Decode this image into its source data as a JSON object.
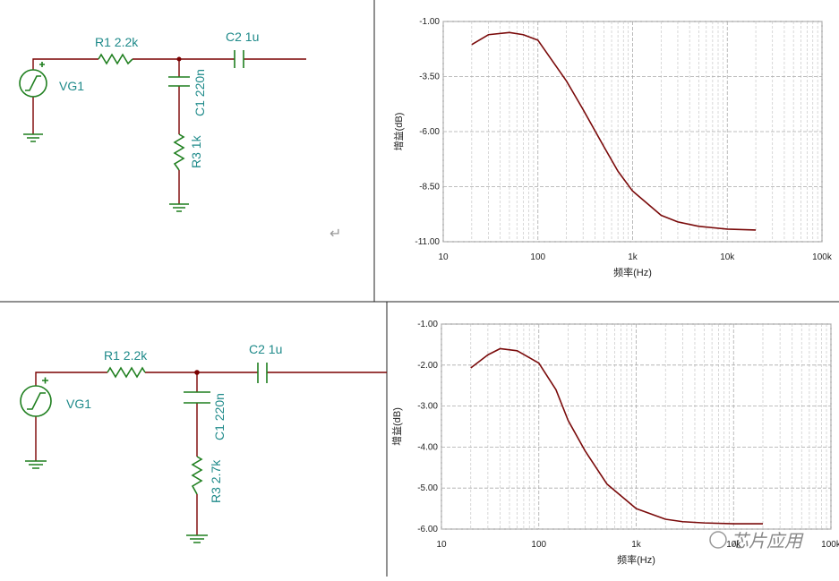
{
  "chart_data": [
    {
      "type": "line",
      "logx": true,
      "grid": true,
      "xlabel": "频率(Hz)",
      "ylabel": "增益(dB)",
      "xlim": [
        10,
        100000
      ],
      "xticks": [
        10,
        100,
        {
          "value": 1000,
          "label": "1k"
        },
        {
          "value": 10000,
          "label": "10k"
        },
        {
          "value": 100000,
          "label": "100k"
        }
      ],
      "ylim": [
        -11,
        -1
      ],
      "yticks": [
        {
          "value": -1,
          "label": "-1.00"
        },
        {
          "value": -3.5,
          "label": "-3.50"
        },
        {
          "value": -6,
          "label": "-6.00"
        },
        {
          "value": -8.5,
          "label": "-8.50"
        },
        {
          "value": -11,
          "label": "-11.00"
        }
      ],
      "x": [
        20,
        30,
        50,
        70,
        100,
        200,
        300,
        500,
        700,
        1000,
        2000,
        3000,
        5000,
        10000,
        20000
      ],
      "series": [
        {
          "color": "#7a0a0a",
          "values": [
            -2.05,
            -1.6,
            -1.5,
            -1.6,
            -1.85,
            -3.7,
            -5.0,
            -6.7,
            -7.8,
            -8.7,
            -9.8,
            -10.1,
            -10.3,
            -10.43,
            -10.47
          ]
        }
      ]
    },
    {
      "type": "line",
      "logx": true,
      "grid": true,
      "xlabel": "频率(Hz)",
      "ylabel": "增益(dB)",
      "xlim": [
        10,
        100000
      ],
      "xticks": [
        10,
        100,
        {
          "value": 1000,
          "label": "1k"
        },
        {
          "value": 10000,
          "label": "10k"
        },
        {
          "value": 100000,
          "label": "100k"
        }
      ],
      "ylim": [
        -6,
        -1
      ],
      "yticks": [
        {
          "value": -1,
          "label": "-1.00"
        },
        {
          "value": -2,
          "label": "-2.00"
        },
        {
          "value": -3,
          "label": "-3.00"
        },
        {
          "value": -4,
          "label": "-4.00"
        },
        {
          "value": -5,
          "label": "-5.00"
        },
        {
          "value": -6,
          "label": "-6.00"
        }
      ],
      "x": [
        20,
        30,
        40,
        60,
        100,
        150,
        200,
        300,
        500,
        1000,
        2000,
        3000,
        5000,
        10000,
        20000
      ],
      "series": [
        {
          "color": "#7a0a0a",
          "values": [
            -2.07,
            -1.75,
            -1.6,
            -1.65,
            -1.95,
            -2.6,
            -3.35,
            -4.1,
            -4.9,
            -5.5,
            -5.76,
            -5.82,
            -5.85,
            -5.87,
            -5.87
          ]
        }
      ]
    }
  ],
  "circuits": [
    {
      "r1": "R1 2.2k",
      "c2": "C2 1u",
      "source": "VG1",
      "c1": "C1 220n",
      "r3": "R3 1k"
    },
    {
      "r1": "R1 2.2k",
      "c2": "C2 1u",
      "source": "VG1",
      "c1": "C1 220n",
      "r3": "R3 2.7k"
    }
  ],
  "return_mark": "↵",
  "watermark": "芯片应用"
}
